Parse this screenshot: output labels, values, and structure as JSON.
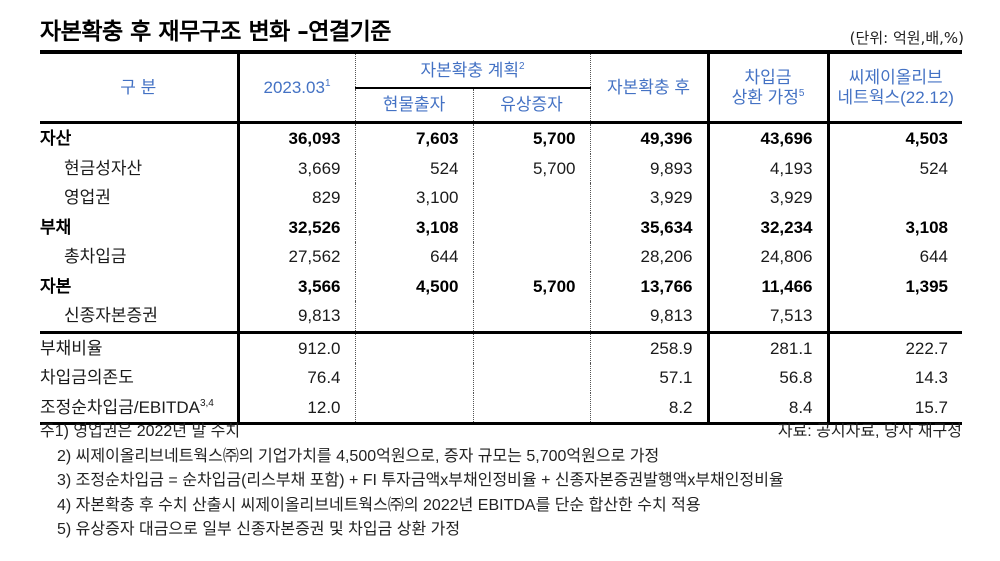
{
  "title": "자본확충 후 재무구조 변화 –연결기준",
  "unit": "(단위: 억원,배,%)",
  "colors": {
    "header_text": "#4472c4",
    "rule": "#000000"
  },
  "header": {
    "category": "구 분",
    "col_2023": "2023.03",
    "col_2023_sup": "1",
    "plan_group": "자본확충 계획",
    "plan_group_sup": "2",
    "plan_inkind": "현물출자",
    "plan_rights": "유상증자",
    "after": "자본확충 후",
    "repay_line1": "차입금",
    "repay_line2": "상환 가정",
    "repay_sup": "5",
    "cj_line1": "씨제이올리브",
    "cj_line2": "네트웍스(22.12)"
  },
  "rows": [
    {
      "label": "자산",
      "bold": true,
      "sub": false,
      "v2023": "36,093",
      "inkind": "7,603",
      "rights": "5,700",
      "after": "49,396",
      "repay": "43,696",
      "cj": "4,503"
    },
    {
      "label": "현금성자산",
      "bold": false,
      "sub": true,
      "v2023": "3,669",
      "inkind": "524",
      "rights": "5,700",
      "after": "9,893",
      "repay": "4,193",
      "cj": "524"
    },
    {
      "label": "영업권",
      "bold": false,
      "sub": true,
      "v2023": "829",
      "inkind": "3,100",
      "rights": "",
      "after": "3,929",
      "repay": "3,929",
      "cj": ""
    },
    {
      "label": "부채",
      "bold": true,
      "sub": false,
      "v2023": "32,526",
      "inkind": "3,108",
      "rights": "",
      "after": "35,634",
      "repay": "32,234",
      "cj": "3,108"
    },
    {
      "label": "총차입금",
      "bold": false,
      "sub": true,
      "v2023": "27,562",
      "inkind": "644",
      "rights": "",
      "after": "28,206",
      "repay": "24,806",
      "cj": "644"
    },
    {
      "label": "자본",
      "bold": true,
      "sub": false,
      "v2023": "3,566",
      "inkind": "4,500",
      "rights": "5,700",
      "after": "13,766",
      "repay": "11,466",
      "cj": "1,395"
    },
    {
      "label": "신종자본증권",
      "bold": false,
      "sub": true,
      "v2023": "9,813",
      "inkind": "",
      "rights": "",
      "after": "9,813",
      "repay": "7,513",
      "cj": ""
    }
  ],
  "ratios": [
    {
      "label": "부채비율",
      "sup": "",
      "v2023": "912.0",
      "inkind": "",
      "rights": "",
      "after": "258.9",
      "repay": "281.1",
      "cj": "222.7"
    },
    {
      "label": "차입금의존도",
      "sup": "",
      "v2023": "76.4",
      "inkind": "",
      "rights": "",
      "after": "57.1",
      "repay": "56.8",
      "cj": "14.3"
    },
    {
      "label": "조정순차입금/EBITDA",
      "sup": "3,4",
      "v2023": "12.0",
      "inkind": "",
      "rights": "",
      "after": "8.2",
      "repay": "8.4",
      "cj": "15.7"
    }
  ],
  "notes": [
    "주1) 영업권은 2022년 말 수치",
    "2) 씨제이올리브네트웍스㈜의 기업가치를 4,500억원으로, 증자 규모는 5,700억원으로 가정",
    "3) 조정순차입금 = 순차입금(리스부채 포함) + FI 투자금액x부채인정비율 + 신종자본증권발행액x부채인정비율",
    "4) 자본확충 후 수치 산출시 씨제이올리브네트웍스㈜의 2022년 EBITDA를 단순 합산한 수치 적용",
    "5) 유상증자 대금으로 일부 신종자본증권 및 차입금 상환 가정"
  ],
  "source": "자료: 공시자료, 당사 재구성"
}
